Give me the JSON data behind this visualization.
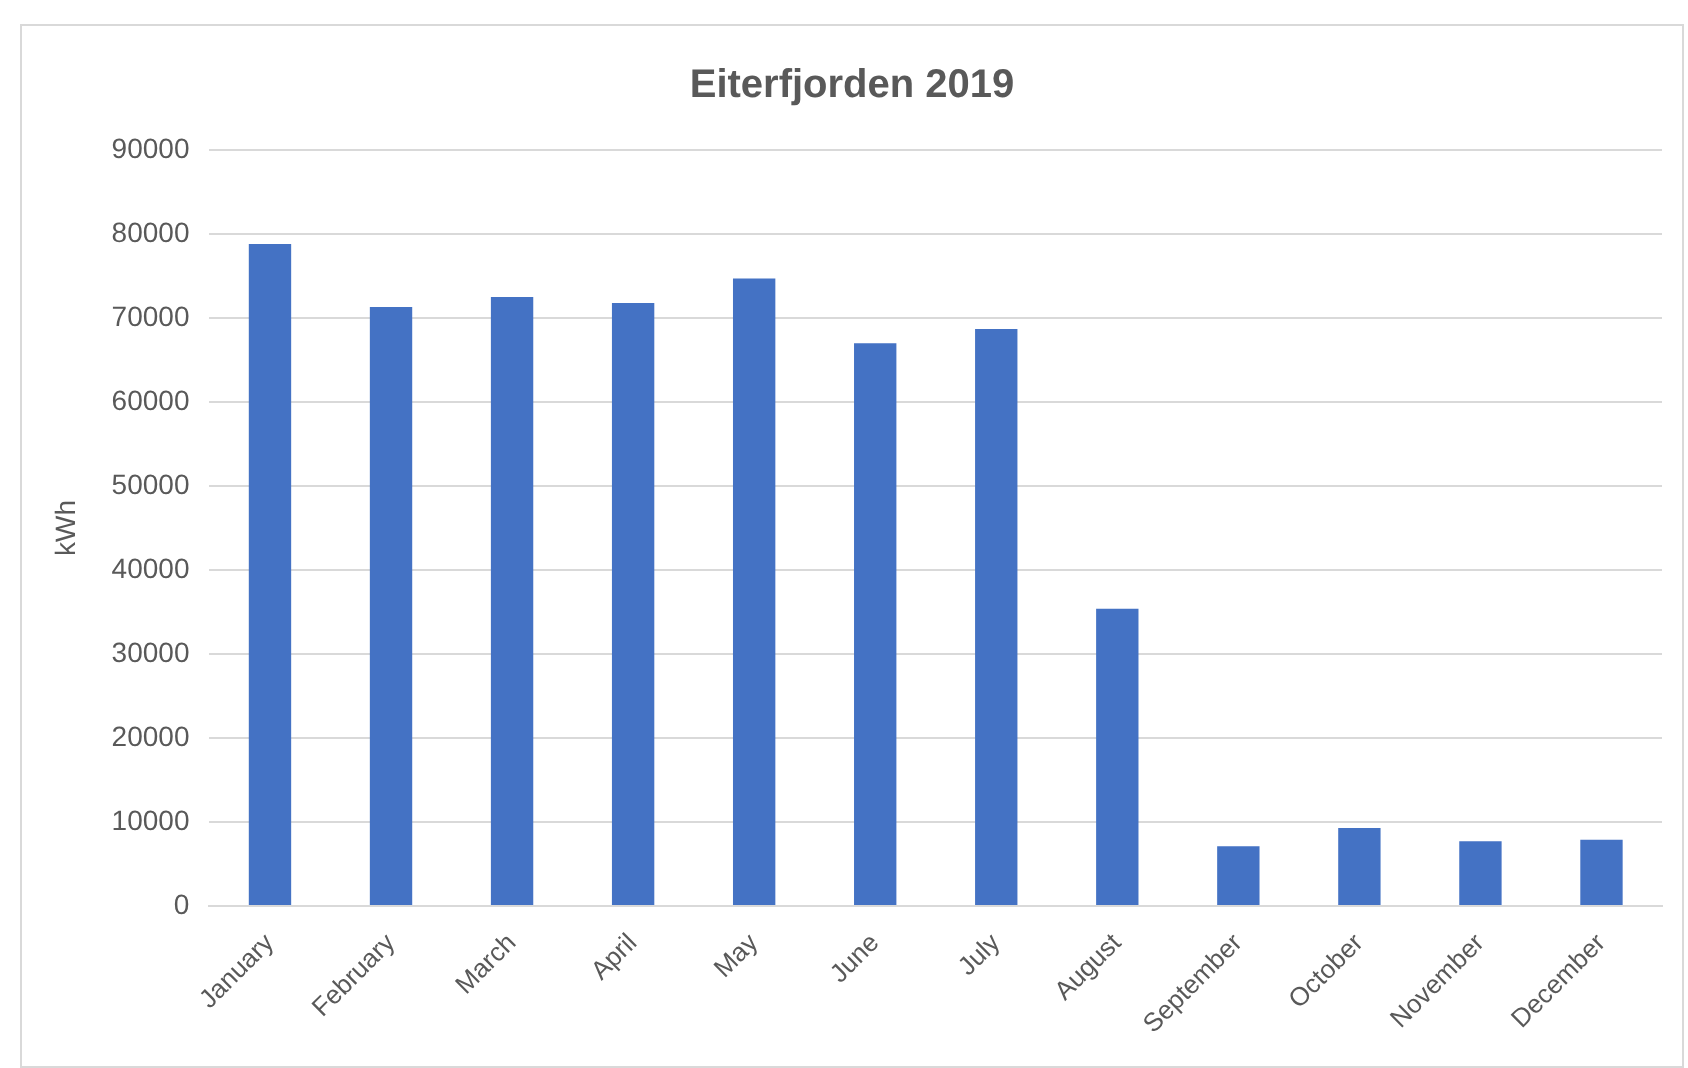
{
  "chart_data": {
    "type": "bar",
    "title": "Eiterfjorden 2019",
    "ylabel": "kWh",
    "categories": [
      "January",
      "February",
      "March",
      "April",
      "May",
      "June",
      "July",
      "August",
      "September",
      "October",
      "November",
      "December"
    ],
    "values": [
      78800,
      71300,
      72500,
      71800,
      74700,
      67000,
      68700,
      35400,
      7100,
      9300,
      7700,
      7900
    ],
    "color": "#4472c4",
    "ylim": [
      0,
      90000
    ],
    "yticks": [
      0,
      10000,
      20000,
      30000,
      40000,
      50000,
      60000,
      70000,
      80000,
      90000
    ],
    "grid": "y"
  }
}
